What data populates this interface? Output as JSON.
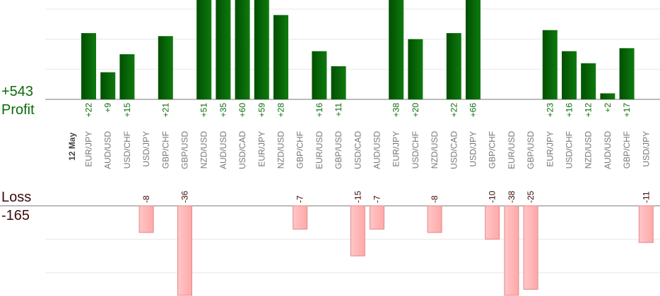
{
  "summary": {
    "profit_total": "+543",
    "profit_label": "Profit",
    "loss_label": "Loss",
    "loss_total": "-165"
  },
  "colors": {
    "profit_bar_dark": "#004f00",
    "profit_bar_light": "#0f7a0f",
    "profit_text": "#0a6b0a",
    "loss_bar_fill": "#ffb6b6",
    "loss_bar_border": "#e08a8a",
    "loss_text": "#3a0a0a",
    "grid": "#e8e8e8",
    "axis": "#777777",
    "category_text": "#777777",
    "date_text": "#444444"
  },
  "chart_data": {
    "type": "bar",
    "date_label": "12 May",
    "categories": [
      "EUR/JPY",
      "AUD/USD",
      "USD/CHF",
      "USD/JPY",
      "GBP/CHF",
      "GBP/USD",
      "NZD/USD",
      "AUD/USD",
      "USD/CAD",
      "EUR/JPY",
      "NZD/USD",
      "GBP/CHF",
      "EUR/USD",
      "GBP/USD",
      "USD/CAD",
      "AUD/USD",
      "EUR/JPY",
      "USD/CHF",
      "NZD/USD",
      "USD/CAD",
      "USD/JPY",
      "GBP/CHF",
      "EUR/USD",
      "GBP/USD",
      "EUR/JPY",
      "USD/CHF",
      "NZD/USD",
      "AUD/USD",
      "GBP/CHF",
      "USD/JPY"
    ],
    "series": [
      {
        "values": [
          22,
          9,
          15,
          null,
          21,
          null,
          51,
          35,
          60,
          59,
          28,
          null,
          16,
          11,
          null,
          null,
          38,
          20,
          null,
          22,
          66,
          null,
          null,
          null,
          23,
          16,
          12,
          2,
          17,
          null
        ],
        "labels": [
          "+22",
          "+9",
          "+15",
          "",
          "+21",
          "",
          "+51",
          "+35",
          "+60",
          "+59",
          "+28",
          "",
          "+16",
          "+11",
          "",
          "",
          "+38",
          "+20",
          "",
          "+22",
          "+66",
          "",
          "",
          "",
          "+23",
          "+16",
          "+12",
          "+2",
          "+17",
          ""
        ]
      },
      {
        "values": [
          null,
          null,
          null,
          -8,
          null,
          -36,
          null,
          null,
          null,
          null,
          null,
          -7,
          null,
          null,
          -15,
          -7,
          null,
          null,
          -8,
          null,
          null,
          -10,
          -38,
          -25,
          null,
          null,
          null,
          null,
          null,
          -11
        ],
        "labels": [
          "",
          "",
          "",
          "-8",
          "",
          "-36",
          "",
          "",
          "",
          "",
          "",
          "-7",
          "",
          "",
          "-15",
          "-7",
          "",
          "",
          "-8",
          "",
          "",
          "-10",
          "-38",
          "-25",
          "",
          "",
          "",
          "",
          "",
          "-11"
        ]
      }
    ],
    "profit_ylim": [
      0,
      33
    ],
    "loss_ylim": [
      -27,
      0
    ],
    "grid": true
  }
}
